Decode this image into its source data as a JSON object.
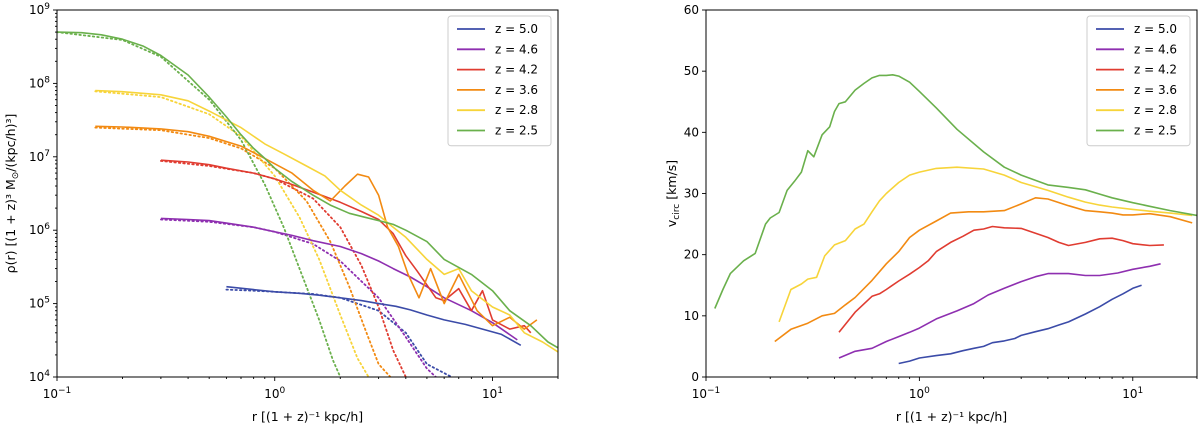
{
  "colors": {
    "z5.0": "#3b4ba8",
    "z4.6": "#8e2fb0",
    "z4.2": "#e03c31",
    "z3.6": "#f28a12",
    "z2.8": "#f7d43a",
    "z2.5": "#6ab04c"
  },
  "chart_data": [
    {
      "id": "density",
      "type": "line",
      "xscale": "log",
      "yscale": "log",
      "xlim": [
        0.1,
        20
      ],
      "ylim": [
        10000,
        1000000000
      ],
      "xlabel": "r [(1 + z)⁻¹ kpc/h]",
      "ylabel_main": "ρ(r) [(1 + z)³ M",
      "ylabel_sub": "⊙",
      "ylabel_tail": "/(kpc/h)³]",
      "xtick_labels": [
        {
          "value": 0.1,
          "base": "10",
          "exp": "−1"
        },
        {
          "value": 1,
          "base": "10",
          "exp": "0"
        },
        {
          "value": 10,
          "base": "10",
          "exp": "1"
        }
      ],
      "ytick_labels": [
        {
          "value": 10000,
          "base": "10",
          "exp": "4"
        },
        {
          "value": 100000,
          "base": "10",
          "exp": "5"
        },
        {
          "value": 1000000,
          "base": "10",
          "exp": "6"
        },
        {
          "value": 10000000,
          "base": "10",
          "exp": "7"
        },
        {
          "value": 100000000,
          "base": "10",
          "exp": "8"
        },
        {
          "value": 1000000000,
          "base": "10",
          "exp": "9"
        }
      ],
      "legend_position": "top-right",
      "legend": [
        "z = 5.0",
        "z = 4.6",
        "z = 4.2",
        "z = 3.6",
        "z = 2.8",
        "z = 2.5"
      ],
      "series": [
        {
          "name": "z = 5.0",
          "color_key": "z5.0",
          "x": [
            0.6,
            0.8,
            1.0,
            1.3,
            1.6,
            2.0,
            2.5,
            3.0,
            3.6,
            4.2,
            5.0,
            6.0,
            7.5,
            9.0,
            11.0,
            13.5
          ],
          "y": [
            170000,
            155000,
            145000,
            138000,
            130000,
            120000,
            110000,
            100000,
            92000,
            82000,
            70000,
            60000,
            52000,
            45000,
            38000,
            27000
          ]
        },
        {
          "name": "z = 4.6",
          "color_key": "z4.6",
          "x": [
            0.3,
            0.4,
            0.5,
            0.6,
            0.8,
            1.0,
            1.2,
            1.5,
            2.0,
            2.5,
            3.0,
            3.5,
            4.2,
            5.0,
            6.0,
            8.0,
            10.0,
            13.0
          ],
          "y": [
            1450000,
            1400000,
            1350000,
            1250000,
            1100000,
            950000,
            850000,
            720000,
            600000,
            480000,
            380000,
            300000,
            230000,
            170000,
            120000,
            80000,
            55000,
            32000
          ]
        },
        {
          "name": "z = 4.2",
          "color_key": "z4.2",
          "x": [
            0.3,
            0.4,
            0.5,
            0.6,
            0.8,
            1.0,
            1.2,
            1.5,
            2.0,
            2.5,
            3.0,
            3.5,
            4.0,
            4.5,
            5.0,
            5.5,
            6.0,
            7.0,
            8.0,
            9.0,
            10.0,
            12.0,
            14.0,
            15.0
          ],
          "y": [
            9000000,
            8500000,
            7800000,
            7000000,
            6000000,
            5000000,
            4200000,
            3300000,
            2400000,
            1800000,
            1400000,
            900000,
            450000,
            280000,
            180000,
            120000,
            110000,
            160000,
            80000,
            150000,
            60000,
            45000,
            50000,
            40000
          ]
        },
        {
          "name": "z = 3.6",
          "color_key": "z3.6",
          "x": [
            0.15,
            0.2,
            0.3,
            0.4,
            0.5,
            0.7,
            0.9,
            1.2,
            1.5,
            1.8,
            2.1,
            2.4,
            2.7,
            3.0,
            3.3,
            3.7,
            4.1,
            4.6,
            5.2,
            6.0,
            7.0,
            8.5,
            10.0,
            12.0,
            14.0,
            16.0
          ],
          "y": [
            26000000,
            25500000,
            24000000,
            22000000,
            19000000,
            14000000,
            9500000,
            6000000,
            3500000,
            2500000,
            4000000,
            5800000,
            5300000,
            3000000,
            1100000,
            600000,
            250000,
            120000,
            300000,
            100000,
            250000,
            80000,
            50000,
            65000,
            45000,
            60000
          ]
        },
        {
          "name": "z = 2.8",
          "color_key": "z2.8",
          "x": [
            0.15,
            0.2,
            0.3,
            0.4,
            0.5,
            0.7,
            0.9,
            1.1,
            1.4,
            1.7,
            2.0,
            2.5,
            3.0,
            3.5,
            4.0,
            5.0,
            6.0,
            7.0,
            8.0,
            10.0,
            12.0,
            14.0,
            17.0,
            20.0
          ],
          "y": [
            80000000,
            77000000,
            70000000,
            58000000,
            42000000,
            25000000,
            15000000,
            11000000,
            7500000,
            5500000,
            3500000,
            2200000,
            1600000,
            1100000,
            800000,
            400000,
            250000,
            300000,
            150000,
            90000,
            70000,
            40000,
            30000,
            22000
          ]
        },
        {
          "name": "z = 2.5",
          "color_key": "z2.5",
          "x": [
            0.1,
            0.13,
            0.16,
            0.2,
            0.25,
            0.3,
            0.4,
            0.5,
            0.6,
            0.7,
            0.8,
            0.9,
            1.0,
            1.2,
            1.5,
            1.8,
            2.2,
            2.6,
            3.0,
            3.5,
            4.0,
            5.0,
            6.0,
            8.0,
            10.0,
            12.0,
            15.0,
            18.0,
            20.0
          ],
          "y": [
            500000000,
            490000000,
            460000000,
            400000000,
            320000000,
            240000000,
            130000000,
            65000000,
            35000000,
            20000000,
            13000000,
            9500000,
            7000000,
            4600000,
            3000000,
            2200000,
            1700000,
            1500000,
            1350000,
            1200000,
            1000000,
            700000,
            400000,
            250000,
            150000,
            80000,
            50000,
            30000,
            25000
          ]
        }
      ],
      "fits": [
        {
          "name": "z = 5.0 fit",
          "color_key": "z5.0",
          "dotted": true,
          "x": [
            0.6,
            0.8,
            1.0,
            1.5,
            2.0,
            3.0,
            4.0,
            5.0,
            6.5
          ],
          "y": [
            155000,
            150000,
            145000,
            135000,
            120000,
            80000,
            40000,
            15000,
            10000
          ]
        },
        {
          "name": "z = 4.6 fit",
          "color_key": "z4.6",
          "dotted": true,
          "x": [
            0.3,
            0.5,
            0.8,
            1.0,
            1.5,
            2.0,
            3.0,
            4.0,
            5.0,
            5.5
          ],
          "y": [
            1400000,
            1300000,
            1100000,
            950000,
            650000,
            380000,
            120000,
            35000,
            13000,
            10000
          ]
        },
        {
          "name": "z = 4.2 fit",
          "color_key": "z4.2",
          "dotted": true,
          "x": [
            0.3,
            0.5,
            0.8,
            1.0,
            1.5,
            2.0,
            2.5,
            3.0,
            3.5,
            4.0
          ],
          "y": [
            8800000,
            7500000,
            6000000,
            5000000,
            2700000,
            1100000,
            330000,
            90000,
            23000,
            10000
          ]
        },
        {
          "name": "z = 3.6 fit",
          "color_key": "z3.6",
          "dotted": true,
          "x": [
            0.15,
            0.3,
            0.5,
            0.7,
            1.0,
            1.4,
            1.8,
            2.2,
            2.6,
            3.0,
            3.4
          ],
          "y": [
            25000000,
            23000000,
            18000000,
            13000000,
            7000000,
            2500000,
            700000,
            170000,
            45000,
            15000,
            10000
          ]
        },
        {
          "name": "z = 2.8 fit",
          "color_key": "z2.8",
          "dotted": true,
          "x": [
            0.15,
            0.3,
            0.5,
            0.7,
            1.0,
            1.3,
            1.6,
            2.0,
            2.4,
            2.7
          ],
          "y": [
            78000000,
            65000000,
            38000000,
            19000000,
            5500000,
            1500000,
            400000,
            70000,
            18000,
            10000
          ]
        },
        {
          "name": "z = 2.5 fit",
          "color_key": "z2.5",
          "dotted": true,
          "x": [
            0.1,
            0.2,
            0.3,
            0.5,
            0.7,
            0.9,
            1.1,
            1.3,
            1.6,
            1.85,
            2.0
          ],
          "y": [
            500000000,
            390000000,
            230000000,
            60000000,
            17000000,
            4200000,
            1100000,
            300000,
            60000,
            17000,
            10000
          ]
        }
      ]
    },
    {
      "id": "vcirc",
      "type": "line",
      "xscale": "log",
      "yscale": "linear",
      "xlim": [
        0.1,
        20
      ],
      "ylim": [
        0,
        60
      ],
      "xlabel": "r [(1 + z)⁻¹ kpc/h]",
      "ylabel_main": "v",
      "ylabel_sub": "circ",
      "ylabel_tail": " [km/s]",
      "xtick_labels": [
        {
          "value": 0.1,
          "base": "10",
          "exp": "−1"
        },
        {
          "value": 1,
          "base": "10",
          "exp": "0"
        },
        {
          "value": 10,
          "base": "10",
          "exp": "1"
        }
      ],
      "ytick_labels": [
        {
          "value": 0,
          "label": "0"
        },
        {
          "value": 10,
          "label": "10"
        },
        {
          "value": 20,
          "label": "20"
        },
        {
          "value": 30,
          "label": "30"
        },
        {
          "value": 40,
          "label": "40"
        },
        {
          "value": 50,
          "label": "50"
        },
        {
          "value": 60,
          "label": "60"
        }
      ],
      "legend_position": "top-right",
      "legend": [
        "z = 5.0",
        "z = 4.6",
        "z = 4.2",
        "z = 3.6",
        "z = 2.8",
        "z = 2.5"
      ],
      "series": [
        {
          "name": "z = 5.0",
          "color_key": "z5.0",
          "x": [
            0.8,
            0.9,
            1.0,
            1.2,
            1.4,
            1.6,
            1.8,
            2.0,
            2.2,
            2.5,
            2.8,
            3.0,
            3.5,
            4.0,
            4.5,
            5.0,
            6.0,
            7.0,
            8.0,
            9.0,
            10.0,
            11.0
          ],
          "y": [
            2.2,
            2.6,
            3.1,
            3.5,
            3.8,
            4.3,
            4.7,
            5.0,
            5.6,
            5.9,
            6.3,
            6.8,
            7.4,
            7.9,
            8.5,
            9.0,
            10.3,
            11.5,
            12.7,
            13.6,
            14.5,
            15.0
          ]
        },
        {
          "name": "z = 4.6",
          "color_key": "z4.6",
          "x": [
            0.42,
            0.5,
            0.6,
            0.7,
            0.8,
            0.9,
            1.0,
            1.2,
            1.5,
            1.8,
            2.1,
            2.5,
            3.0,
            3.5,
            4.0,
            5.0,
            6.0,
            7.0,
            8.5,
            10.0,
            12.0,
            13.5
          ],
          "y": [
            3.1,
            4.2,
            4.7,
            5.8,
            6.6,
            7.3,
            8.0,
            9.5,
            10.8,
            12.0,
            13.4,
            14.5,
            15.6,
            16.4,
            16.9,
            16.9,
            16.6,
            16.6,
            17.0,
            17.6,
            18.1,
            18.5
          ]
        },
        {
          "name": "z = 4.2",
          "color_key": "z4.2",
          "x": [
            0.42,
            0.5,
            0.6,
            0.65,
            0.7,
            0.8,
            0.9,
            1.0,
            1.1,
            1.2,
            1.4,
            1.6,
            1.8,
            2.0,
            2.2,
            2.5,
            3.0,
            3.5,
            4.0,
            4.5,
            5.0,
            6.0,
            7.0,
            8.0,
            9.0,
            10.0,
            12.0,
            14.0
          ],
          "y": [
            7.3,
            10.6,
            13.2,
            13.6,
            14.3,
            15.7,
            16.8,
            17.9,
            19.0,
            20.5,
            22.0,
            23.0,
            24.0,
            24.2,
            24.6,
            24.4,
            24.3,
            23.5,
            22.8,
            22.0,
            21.5,
            22.0,
            22.6,
            22.7,
            22.3,
            21.8,
            21.5,
            21.6
          ]
        },
        {
          "name": "z = 3.6",
          "color_key": "z3.6",
          "x": [
            0.21,
            0.25,
            0.3,
            0.35,
            0.4,
            0.45,
            0.5,
            0.6,
            0.7,
            0.8,
            0.9,
            1.0,
            1.2,
            1.4,
            1.7,
            2.0,
            2.5,
            3.0,
            3.5,
            4.0,
            5.0,
            6.0,
            7.0,
            8.0,
            9.0,
            10.0,
            12.0,
            15.0,
            19.0
          ],
          "y": [
            5.8,
            7.8,
            8.8,
            10.0,
            10.4,
            11.8,
            13.0,
            15.8,
            18.5,
            20.5,
            22.8,
            24.0,
            25.5,
            26.8,
            27.0,
            27.0,
            27.2,
            28.3,
            29.3,
            29.1,
            28.0,
            27.2,
            27.0,
            26.8,
            26.5,
            26.5,
            26.7,
            26.2,
            25.2
          ]
        },
        {
          "name": "z = 2.8",
          "color_key": "z2.8",
          "x": [
            0.22,
            0.25,
            0.28,
            0.3,
            0.33,
            0.36,
            0.4,
            0.45,
            0.5,
            0.55,
            0.6,
            0.65,
            0.7,
            0.8,
            0.9,
            1.0,
            1.2,
            1.5,
            2.0,
            2.5,
            3.0,
            4.0,
            5.0,
            6.0,
            7.0,
            8.0,
            10.0,
            12.0,
            15.0,
            19.0
          ],
          "y": [
            9.0,
            14.3,
            15.2,
            16.0,
            16.3,
            19.8,
            21.6,
            22.3,
            24.2,
            25.0,
            27.0,
            28.8,
            30.0,
            31.8,
            33.0,
            33.5,
            34.1,
            34.3,
            34.0,
            33.0,
            31.8,
            30.5,
            29.4,
            28.6,
            28.1,
            27.8,
            27.4,
            27.1,
            26.8,
            26.4
          ]
        },
        {
          "name": "z = 2.5",
          "color_key": "z2.5",
          "x": [
            0.11,
            0.12,
            0.13,
            0.15,
            0.17,
            0.19,
            0.2,
            0.22,
            0.24,
            0.26,
            0.28,
            0.3,
            0.32,
            0.35,
            0.38,
            0.4,
            0.42,
            0.45,
            0.5,
            0.55,
            0.6,
            0.65,
            0.7,
            0.75,
            0.8,
            0.9,
            1.0,
            1.2,
            1.5,
            2.0,
            2.5,
            3.0,
            4.0,
            5.0,
            6.0,
            7.0,
            8.0,
            10.0,
            12.0,
            15.0,
            20.0
          ],
          "y": [
            11.2,
            14.3,
            16.9,
            19.0,
            20.2,
            25.0,
            26.0,
            26.9,
            30.5,
            32.0,
            33.5,
            37.0,
            36.0,
            39.6,
            40.9,
            43.4,
            44.7,
            45.0,
            46.9,
            48.0,
            48.9,
            49.3,
            49.3,
            49.4,
            49.2,
            48.2,
            46.7,
            44.0,
            40.5,
            36.8,
            34.3,
            33.0,
            31.4,
            31.0,
            30.6,
            29.9,
            29.3,
            28.5,
            27.9,
            27.2,
            26.4
          ]
        }
      ]
    }
  ]
}
